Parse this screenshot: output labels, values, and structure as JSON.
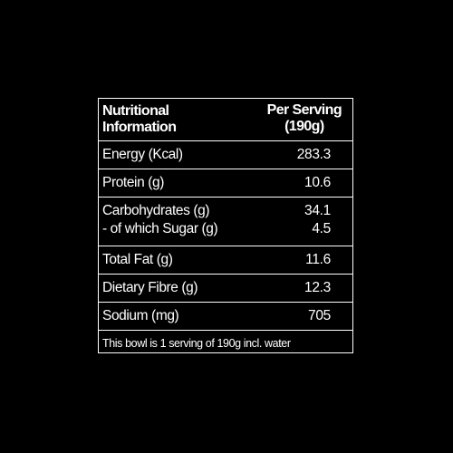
{
  "colors": {
    "background": "#000000",
    "foreground": "#ffffff"
  },
  "header": {
    "left_line1": "Nutritional",
    "left_line2": "Information",
    "right_line1": "Per Serving",
    "right_line2": "(190g)"
  },
  "rows": [
    {
      "label": "Energy (Kcal)",
      "value": "283.3"
    },
    {
      "label": "Protein (g)",
      "value": "10.6"
    },
    {
      "label": "Carbohydrates (g)",
      "value": "34.1",
      "sub_label": "- of which Sugar (g)",
      "sub_value": "4.5"
    },
    {
      "label": "Total Fat (g)",
      "value": "11.6"
    },
    {
      "label": "Dietary Fibre (g)",
      "value": "12.3"
    },
    {
      "label": "Sodium (mg)",
      "value": "705"
    }
  ],
  "footnote": "This bowl is 1 serving of 190g incl. water"
}
